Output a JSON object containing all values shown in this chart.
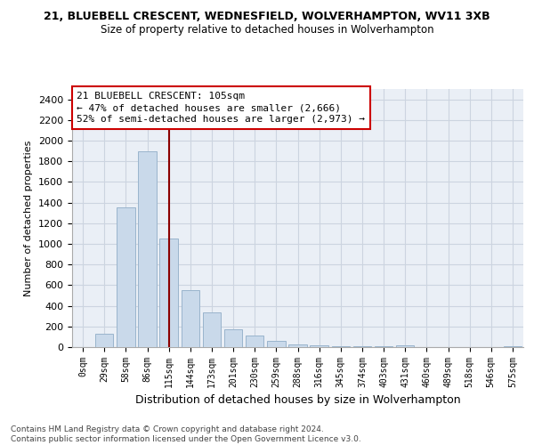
{
  "title1": "21, BLUEBELL CRESCENT, WEDNESFIELD, WOLVERHAMPTON, WV11 3XB",
  "title2": "Size of property relative to detached houses in Wolverhampton",
  "xlabel": "Distribution of detached houses by size in Wolverhampton",
  "ylabel": "Number of detached properties",
  "footnote": "Contains HM Land Registry data © Crown copyright and database right 2024.\nContains public sector information licensed under the Open Government Licence v3.0.",
  "bar_color": "#c9d9ea",
  "bar_edge_color": "#9ab4cc",
  "categories": [
    "0sqm",
    "29sqm",
    "58sqm",
    "86sqm",
    "115sqm",
    "144sqm",
    "173sqm",
    "201sqm",
    "230sqm",
    "259sqm",
    "288sqm",
    "316sqm",
    "345sqm",
    "374sqm",
    "403sqm",
    "431sqm",
    "460sqm",
    "489sqm",
    "518sqm",
    "546sqm",
    "575sqm"
  ],
  "values": [
    0,
    130,
    1350,
    1900,
    1050,
    550,
    340,
    170,
    110,
    60,
    30,
    20,
    10,
    5,
    5,
    20,
    0,
    0,
    0,
    0,
    5
  ],
  "ylim": [
    0,
    2500
  ],
  "yticks": [
    0,
    200,
    400,
    600,
    800,
    1000,
    1200,
    1400,
    1600,
    1800,
    2000,
    2200,
    2400
  ],
  "red_line_x": 4.0,
  "annotation_line1": "21 BLUEBELL CRESCENT: 105sqm",
  "annotation_line2": "← 47% of detached houses are smaller (2,666)",
  "annotation_line3": "52% of semi-detached houses are larger (2,973) →",
  "grid_color": "#ccd4e0",
  "background_color": "#eaeff6"
}
